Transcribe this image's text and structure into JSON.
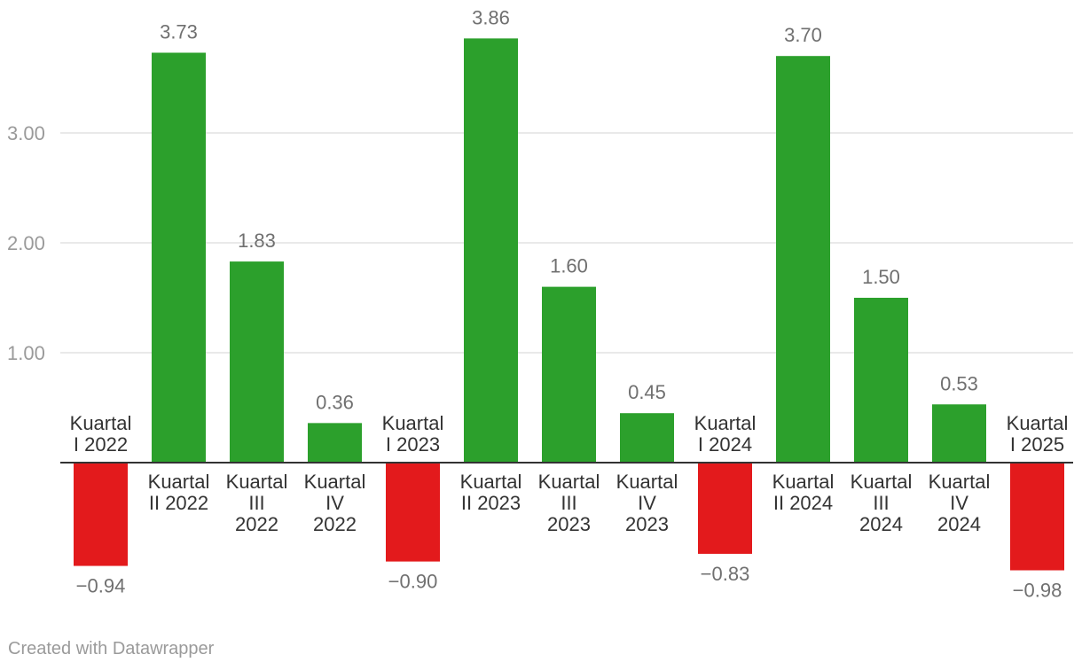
{
  "chart_data": {
    "type": "bar",
    "categories": [
      "Kuartal I 2022",
      "Kuartal II 2022",
      "Kuartal III 2022",
      "Kuartal IV 2022",
      "Kuartal I 2023",
      "Kuartal II 2023",
      "Kuartal III 2023",
      "Kuartal IV 2023",
      "Kuartal I 2024",
      "Kuartal II 2024",
      "Kuartal III 2024",
      "Kuartal IV 2024",
      "Kuartal I 2025"
    ],
    "category_label_lines": [
      [
        "Kuartal",
        "I 2022"
      ],
      [
        "Kuartal",
        "II 2022"
      ],
      [
        "Kuartal",
        "III",
        "2022"
      ],
      [
        "Kuartal",
        "IV",
        "2022"
      ],
      [
        "Kuartal",
        "I 2023"
      ],
      [
        "Kuartal",
        "II 2023"
      ],
      [
        "Kuartal",
        "III",
        "2023"
      ],
      [
        "Kuartal",
        "IV",
        "2023"
      ],
      [
        "Kuartal",
        "I 2024"
      ],
      [
        "Kuartal",
        "II 2024"
      ],
      [
        "Kuartal",
        "III",
        "2024"
      ],
      [
        "Kuartal",
        "IV",
        "2024"
      ],
      [
        "Kuartal",
        "I 2025"
      ]
    ],
    "values": [
      -0.94,
      3.73,
      1.83,
      0.36,
      -0.9,
      3.86,
      1.6,
      0.45,
      -0.83,
      3.7,
      1.5,
      0.53,
      -0.98
    ],
    "value_labels": [
      "−0.94",
      "3.73",
      "1.83",
      "0.36",
      "−0.90",
      "3.86",
      "1.60",
      "0.45",
      "−0.83",
      "3.70",
      "1.50",
      "0.53",
      "−0.98"
    ],
    "yticks": [
      1.0,
      2.0,
      3.0
    ],
    "ytick_labels": [
      "1.00",
      "2.00",
      "3.00"
    ],
    "ylim": [
      -1.2,
      4.2
    ],
    "grid": true,
    "colors": {
      "positive": "#2ca02c",
      "negative": "#e31a1c"
    },
    "title": "",
    "xlabel": "",
    "ylabel": ""
  },
  "footer": {
    "credit": "Created with Datawrapper"
  }
}
